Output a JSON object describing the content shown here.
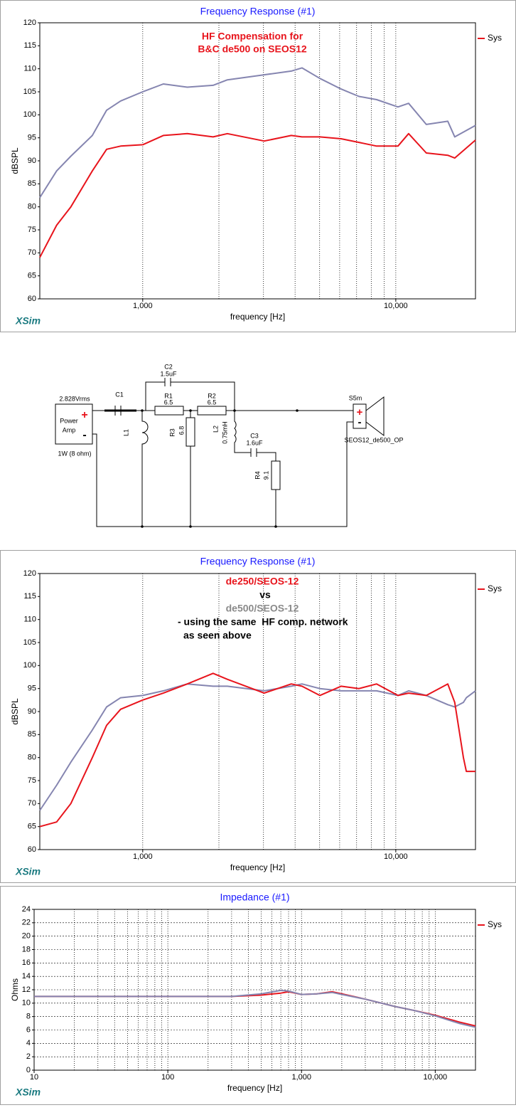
{
  "chart_data": [
    {
      "type": "line",
      "title": "Frequency Response (#1)",
      "xlabel": "frequency [Hz]",
      "ylabel": "dBSPL",
      "watermark": "XSim",
      "xscale": "log",
      "xlim": [
        392,
        20650
      ],
      "xticks": [
        {
          "value": 1000,
          "label": "1,000"
        },
        {
          "value": 10000,
          "label": "10,000"
        }
      ],
      "minor_xgrid": [
        2000,
        3000,
        4000,
        5000,
        6000,
        7000,
        8000,
        9000
      ],
      "ylim": [
        60,
        120
      ],
      "yticks": [
        60,
        65,
        70,
        75,
        80,
        85,
        90,
        95,
        100,
        105,
        110,
        115,
        120
      ],
      "xgrid": true,
      "ygrid": false,
      "legend": "right",
      "annotations": [
        {
          "text": "HF Compensation for",
          "color": "#e8141c"
        },
        {
          "text": "B&C de500 on SEOS12",
          "color": "#e8141c"
        }
      ],
      "x": [
        392,
        457,
        520,
        632,
        720,
        818,
        1000,
        1206,
        1500,
        1897,
        2160,
        3020,
        3863,
        4260,
        5010,
        6080,
        7150,
        8400,
        10200,
        11240,
        13200,
        16050,
        17100,
        20650
      ],
      "series": [
        {
          "color": "#8585b0",
          "values": [
            82,
            87.8,
            91,
            95.5,
            101,
            103,
            105,
            106.7,
            106,
            106.4,
            107.6,
            108.7,
            109.5,
            110.2,
            107.9,
            105.6,
            104,
            103.3,
            101.7,
            102.5,
            97.9,
            98.6,
            95.2,
            97.7
          ]
        },
        {
          "name": "Sys",
          "color": "#e8141c",
          "values": [
            69,
            76,
            80,
            87.8,
            92.5,
            93.2,
            93.5,
            95.5,
            95.9,
            95.2,
            95.9,
            94.3,
            95.5,
            95.2,
            95.2,
            94.8,
            94,
            93.2,
            93.2,
            95.9,
            91.7,
            91.2,
            90.6,
            94.5
          ]
        }
      ]
    },
    {
      "type": "line",
      "title": "Frequency Response (#1)",
      "xlabel": "frequency [Hz]",
      "ylabel": "dBSPL",
      "watermark": "XSim",
      "xscale": "log",
      "xlim": [
        392,
        20650
      ],
      "xticks": [
        {
          "value": 1000,
          "label": "1,000"
        },
        {
          "value": 10000,
          "label": "10,000"
        }
      ],
      "minor_xgrid": [
        2000,
        3000,
        4000,
        5000,
        6000,
        7000,
        8000,
        9000
      ],
      "ylim": [
        60,
        120
      ],
      "yticks": [
        60,
        65,
        70,
        75,
        80,
        85,
        90,
        95,
        100,
        105,
        110,
        115,
        120
      ],
      "xgrid": true,
      "ygrid": false,
      "legend": "right",
      "annotations": [
        {
          "text": "de250/SEOS-12",
          "color": "#e8141c"
        },
        {
          "text": "vs",
          "color": "#000000"
        },
        {
          "text": "de500/SEOS-12",
          "color": "#8a8a8a"
        },
        {
          "text": "- using the same  HF comp. network",
          "color": "#000000"
        },
        {
          "text": "as seen above",
          "color": "#000000"
        }
      ],
      "x": [
        392,
        457,
        520,
        632,
        720,
        818,
        1000,
        1206,
        1500,
        1897,
        2160,
        3020,
        3863,
        4260,
        5010,
        6080,
        7150,
        8400,
        10200,
        11240,
        13200,
        16050,
        17100,
        18500,
        19000,
        20650
      ],
      "series": [
        {
          "color": "#8585b0",
          "values": [
            68.5,
            74,
            79,
            86,
            91,
            93,
            93.5,
            94.5,
            96,
            95.5,
            95.5,
            94.5,
            95.5,
            96,
            95,
            94.5,
            94.5,
            94.5,
            93.5,
            94.5,
            93.5,
            91.5,
            91,
            92,
            93,
            94.5
          ]
        },
        {
          "name": "Sys",
          "color": "#e8141c",
          "values": [
            65,
            66,
            70,
            80,
            87,
            90.5,
            92.5,
            94,
            96,
            98.3,
            97,
            94,
            96,
            95.5,
            93.5,
            95.5,
            95,
            96,
            93.5,
            94,
            93.5,
            96,
            92,
            80,
            77,
            77
          ]
        }
      ]
    },
    {
      "type": "line",
      "title": "Impedance (#1)",
      "xlabel": "frequency [Hz]",
      "ylabel": "Ohms",
      "watermark": "XSim",
      "xscale": "log",
      "xlim": [
        10,
        20000
      ],
      "xticks": [
        10,
        100,
        {
          "value": 1000,
          "label": "1,000"
        },
        {
          "value": 10000,
          "label": "10,000"
        }
      ],
      "minor_xgrid": [
        20,
        30,
        40,
        50,
        60,
        70,
        80,
        90,
        200,
        300,
        400,
        500,
        600,
        700,
        800,
        900,
        2000,
        3000,
        4000,
        5000,
        6000,
        7000,
        8000,
        9000
      ],
      "ylim": [
        0,
        24
      ],
      "yticks": [
        0,
        2,
        4,
        6,
        8,
        10,
        12,
        14,
        16,
        18,
        20,
        22,
        24
      ],
      "xgrid": true,
      "ygrid": true,
      "legend": "right",
      "annotations": [],
      "x": [
        10,
        100,
        300,
        500,
        700,
        800,
        1000,
        1300,
        1700,
        2000,
        3000,
        5000,
        7000,
        10000,
        15000,
        20000
      ],
      "series": [
        {
          "name": "Sys",
          "color": "#e8141c",
          "values": [
            11,
            11,
            11,
            11.2,
            11.5,
            11.7,
            11.3,
            11.4,
            11.7,
            11.4,
            10.6,
            9.5,
            8.9,
            8.2,
            7.2,
            6.6
          ]
        },
        {
          "color": "#8585b0",
          "values": [
            11,
            11,
            11,
            11.4,
            11.9,
            11.8,
            11.3,
            11.4,
            11.6,
            11.3,
            10.6,
            9.5,
            8.9,
            8.1,
            7.0,
            6.4
          ]
        }
      ]
    }
  ],
  "schematic": {
    "source_voltage": "2.828Vrms",
    "source_line1": "Power",
    "source_line2": "Amp",
    "source_plus": "+",
    "source_minus": "-",
    "source_power": "1W (8 ohm)",
    "c1": "C1",
    "c2": "C2",
    "c2_value": "1.5uF",
    "r1": "R1",
    "r1_value": "6.5",
    "r2": "R2",
    "r2_value": "6.5",
    "l1": "L1",
    "r3": "R3",
    "r3_value": "6.8",
    "l2": "L2",
    "l2_value": "0.75mH",
    "c3": "C3",
    "c3_value": "1.6uF",
    "r4": "R4",
    "r4_value": "9.1",
    "speaker": "S5m",
    "speaker_plus": "+",
    "speaker_minus": "-",
    "speaker_model": "SEOS12_de500_OP"
  }
}
